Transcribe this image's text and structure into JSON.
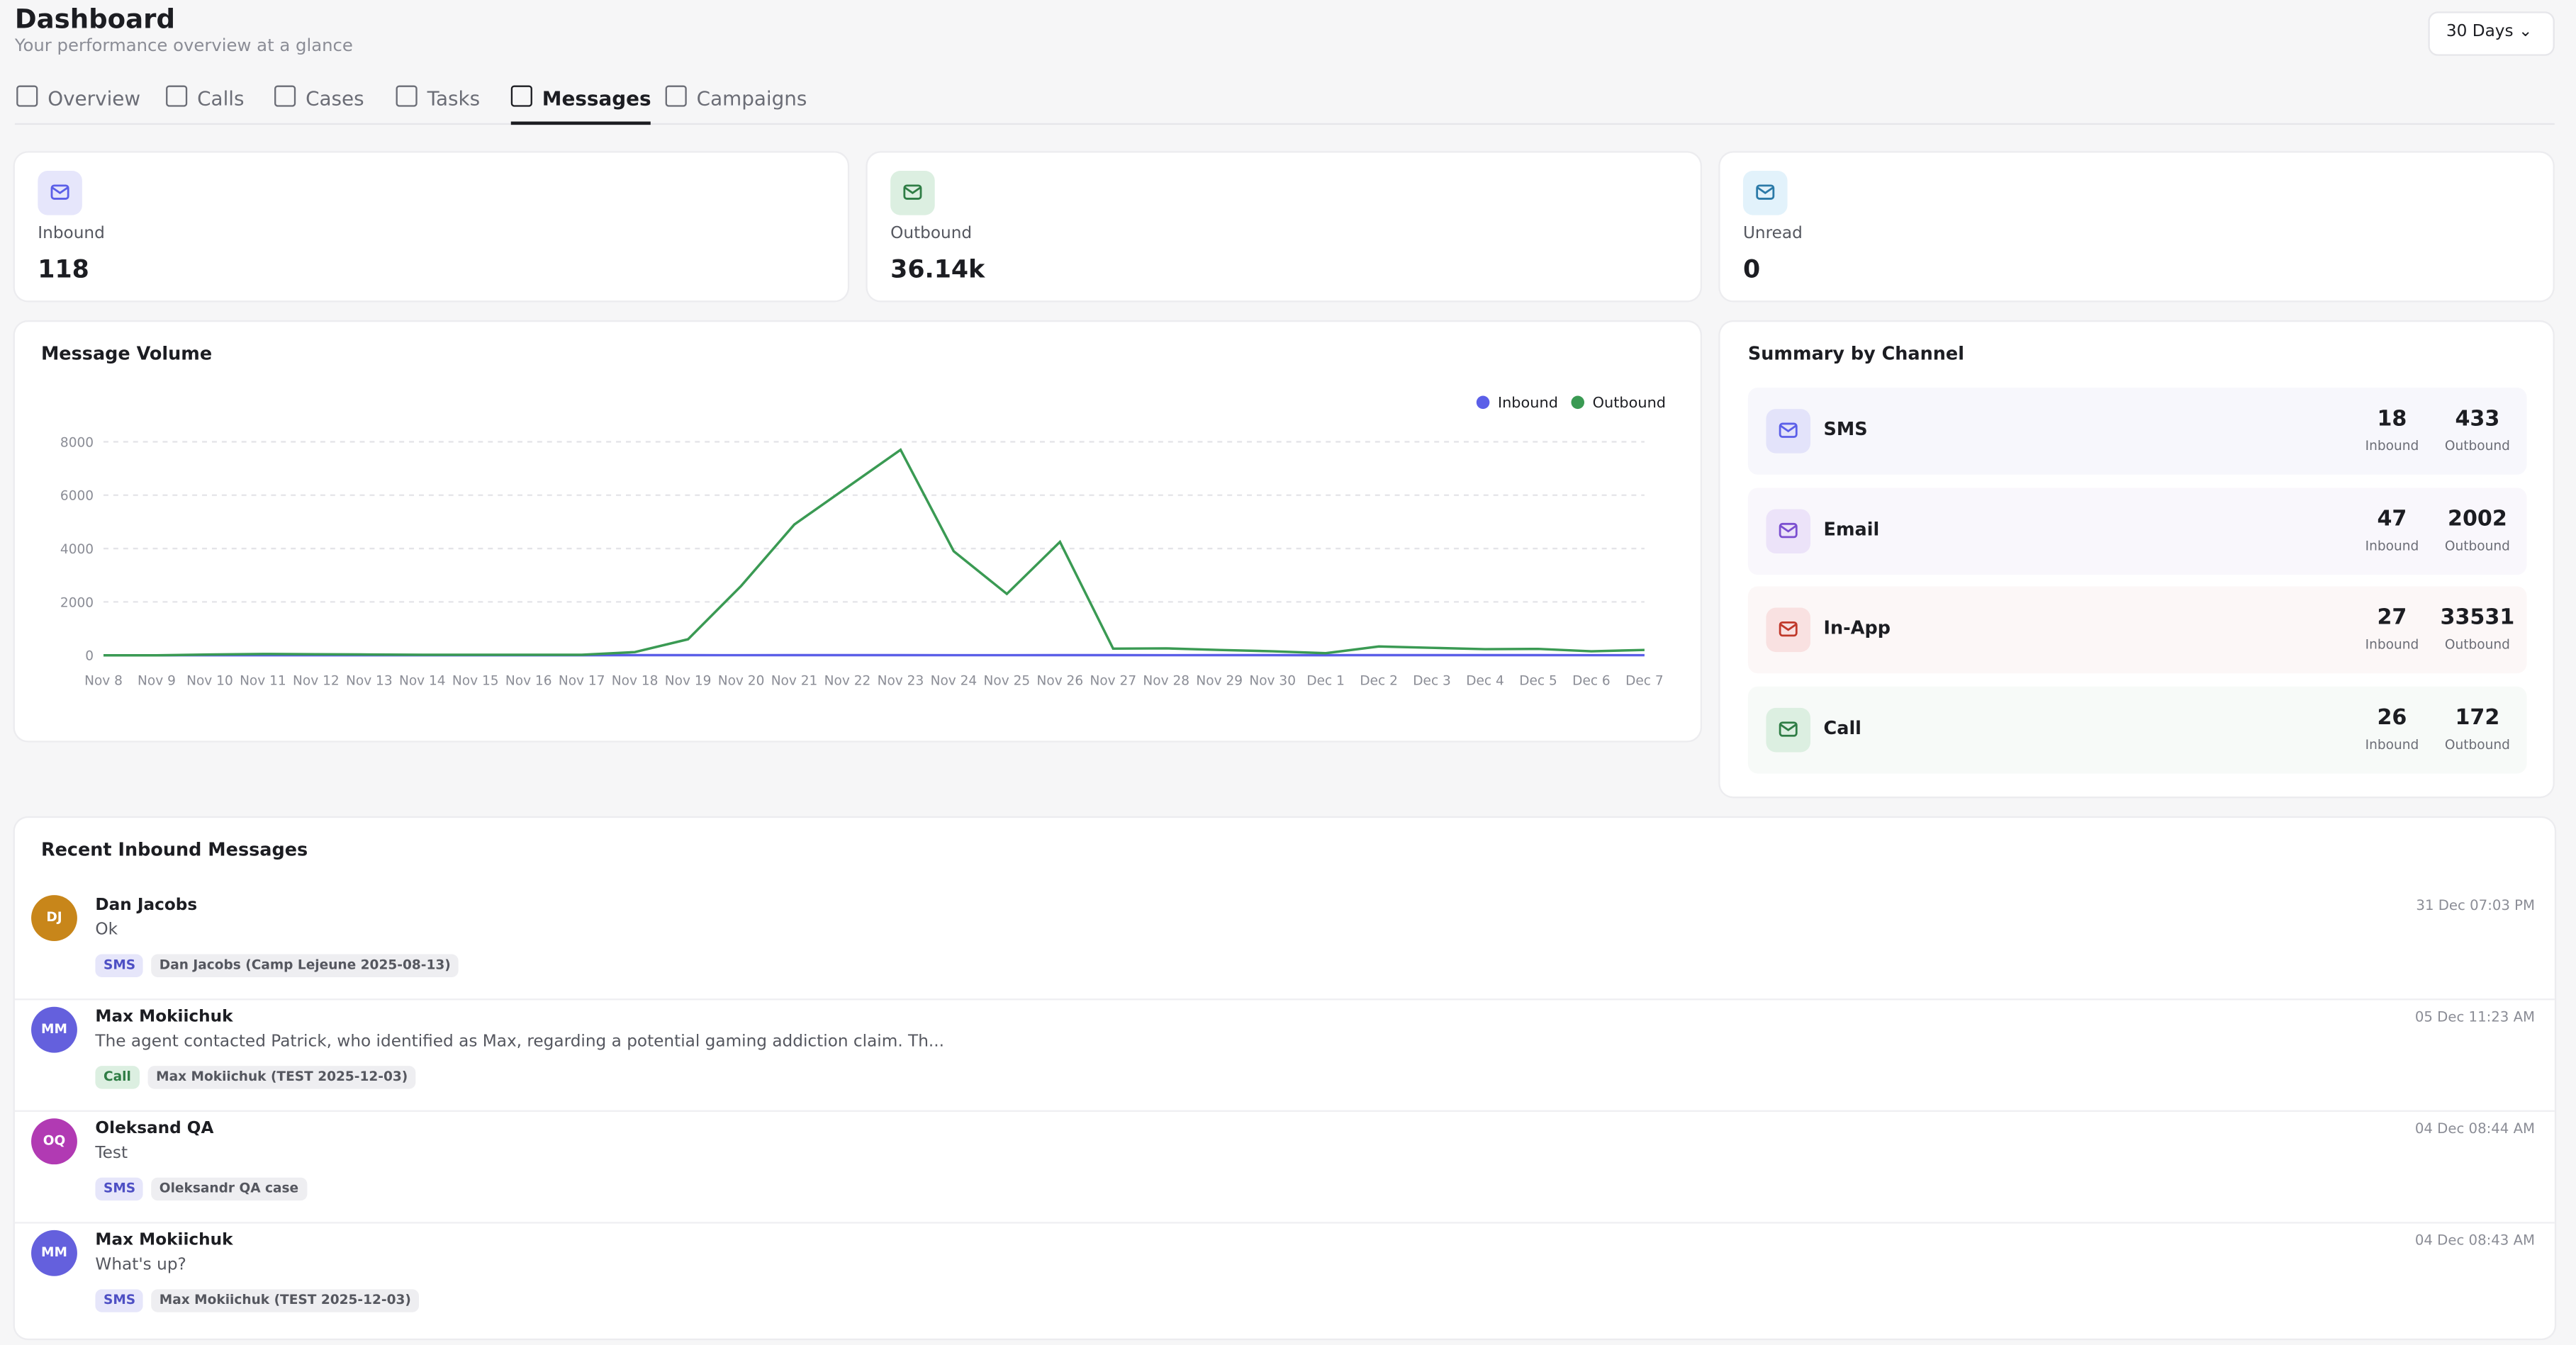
{
  "header": {
    "title": "Dashboard",
    "subtitle": "Your performance overview at a glance",
    "range": "30 Days"
  },
  "tabs": [
    "Overview",
    "Calls",
    "Cases",
    "Tasks",
    "Messages",
    "Campaigns"
  ],
  "active_tab": 4,
  "stats": [
    {
      "label": "Inbound",
      "value": "118",
      "color": "#5b5fe8",
      "bg": "#e6e6fb"
    },
    {
      "label": "Outbound",
      "value": "36.14k",
      "color": "#2f7d45",
      "bg": "#dcefe1"
    },
    {
      "label": "Unread",
      "value": "0",
      "color": "#2b7aa8",
      "bg": "#e2f2fb"
    }
  ],
  "chart_data": {
    "type": "line",
    "title": "Message Volume",
    "x": [
      "Nov 8",
      "Nov 9",
      "Nov 10",
      "Nov 11",
      "Nov 12",
      "Nov 13",
      "Nov 14",
      "Nov 15",
      "Nov 16",
      "Nov 17",
      "Nov 18",
      "Nov 19",
      "Nov 20",
      "Nov 21",
      "Nov 22",
      "Nov 23",
      "Nov 24",
      "Nov 25",
      "Nov 26",
      "Nov 27",
      "Nov 28",
      "Nov 29",
      "Nov 30",
      "Dec 1",
      "Dec 2",
      "Dec 3",
      "Dec 4",
      "Dec 5",
      "Dec 6",
      "Dec 7"
    ],
    "series": [
      {
        "name": "Inbound",
        "color": "#5b5fe8",
        "values": [
          0,
          0,
          2,
          3,
          2,
          1,
          1,
          2,
          1,
          3,
          6,
          5,
          4,
          5,
          6,
          5,
          4,
          4,
          6,
          5,
          4,
          6,
          5,
          3,
          7,
          6,
          5,
          5,
          4,
          4
        ]
      },
      {
        "name": "Outbound",
        "color": "#3a9a53",
        "values": [
          0,
          0,
          30,
          50,
          40,
          30,
          20,
          20,
          20,
          20,
          120,
          600,
          2600,
          4900,
          6300,
          7700,
          3900,
          2300,
          4250,
          250,
          260,
          200,
          150,
          80,
          330,
          280,
          230,
          240,
          150,
          200
        ]
      }
    ],
    "ylim": [
      0,
      8000
    ],
    "yticks": [
      0,
      2000,
      4000,
      6000,
      8000
    ],
    "grid": true,
    "legend": "top-right"
  },
  "summary": {
    "title": "Summary by Channel",
    "rows": [
      {
        "channel": "SMS",
        "inbound": "18",
        "inbound_label": "Inbound",
        "outbound": "433",
        "outbound_label": "Outbound",
        "color": "#5b5fe8",
        "bg": "#e3e3fa",
        "row_bg": "#f7f7fc"
      },
      {
        "channel": "Email",
        "inbound": "47",
        "inbound_label": "Inbound",
        "outbound": "2002",
        "outbound_label": "Outbound",
        "color": "#7b4fd0",
        "bg": "#ece3f9",
        "row_bg": "#f9f7fc"
      },
      {
        "channel": "In-App",
        "inbound": "27",
        "inbound_label": "Inbound",
        "outbound": "33531",
        "outbound_label": "Outbound",
        "color": "#c0392b",
        "bg": "#f9e1e1",
        "row_bg": "#fcf7f7"
      },
      {
        "channel": "Call",
        "inbound": "26",
        "inbound_label": "Inbound",
        "outbound": "172",
        "outbound_label": "Outbound",
        "color": "#2f7d45",
        "bg": "#dcefe1",
        "row_bg": "#f7faf8"
      }
    ]
  },
  "recent": {
    "title": "Recent Inbound Messages",
    "messages": [
      {
        "initials": "DJ",
        "avatar_color": "#c8861a",
        "name": "Dan Jacobs",
        "text": "Ok",
        "tags": [
          "SMS",
          "Dan Jacobs (Camp Lejeune 2025-08-13)"
        ],
        "channel_color": "#4d4fc4",
        "channel_bg": "#e6e6fa",
        "time": "31 Dec 07:03 PM"
      },
      {
        "initials": "MM",
        "avatar_color": "#6460dd",
        "name": "Max Mokiichuk",
        "text": "The agent contacted Patrick, who identified as Max, regarding a potential gaming addiction claim. Th...",
        "tags": [
          "Call",
          "Max Mokiichuk (TEST 2025-12-03)"
        ],
        "channel_color": "#2f7d45",
        "channel_bg": "#dcefe1",
        "time": "05 Dec 11:23 AM"
      },
      {
        "initials": "OQ",
        "avatar_color": "#b13ab3",
        "name": "Oleksand QA",
        "text": "Test",
        "tags": [
          "SMS",
          "Oleksandr QA case"
        ],
        "channel_color": "#4d4fc4",
        "channel_bg": "#e6e6fa",
        "time": "04 Dec 08:44 AM"
      },
      {
        "initials": "MM",
        "avatar_color": "#6460dd",
        "name": "Max Mokiichuk",
        "text": "What's up?",
        "tags": [
          "SMS",
          "Max Mokiichuk (TEST 2025-12-03)"
        ],
        "channel_color": "#4d4fc4",
        "channel_bg": "#e6e6fa",
        "time": "04 Dec 08:43 AM"
      }
    ]
  }
}
